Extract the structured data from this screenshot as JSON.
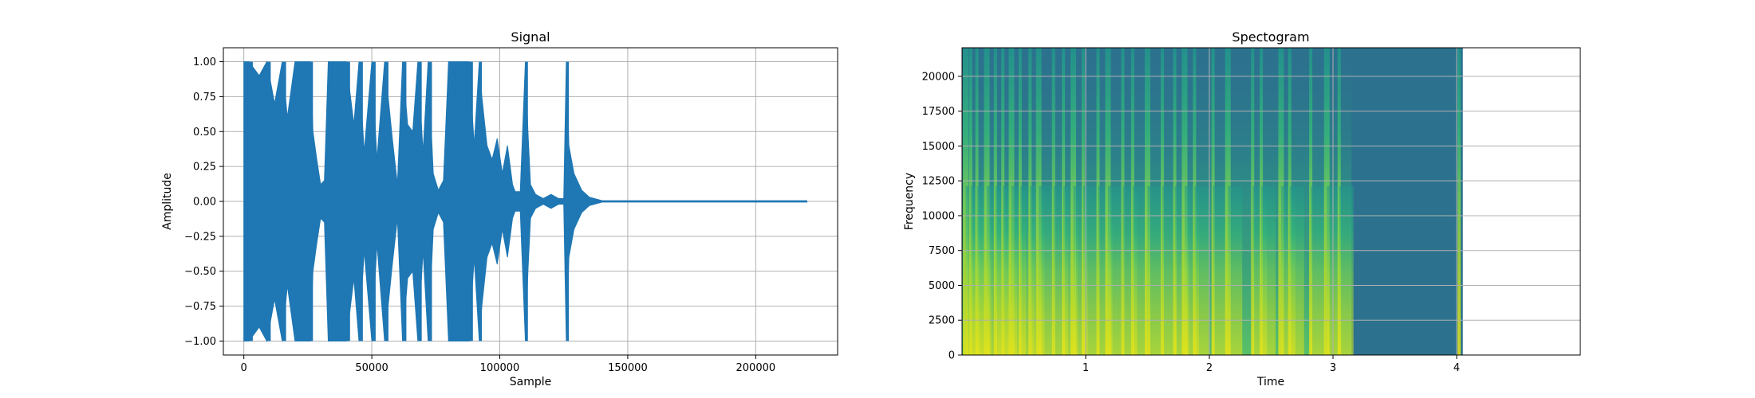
{
  "chart_data": [
    {
      "type": "line",
      "title": "Signal",
      "xlabel": "Sample",
      "ylabel": "Amplitude",
      "xlim": [
        -8000,
        232000
      ],
      "ylim": [
        -1.1,
        1.1
      ],
      "xticks": [
        0,
        50000,
        100000,
        150000,
        200000
      ],
      "yticks": [
        -1.0,
        -0.75,
        -0.5,
        -0.25,
        0.0,
        0.25,
        0.5,
        0.75,
        1.0
      ],
      "xtick_labels": [
        "0",
        "50000",
        "100000",
        "150000",
        "200000"
      ],
      "ytick_labels": [
        "−1.00",
        "−0.75",
        "−0.50",
        "−0.25",
        "0.00",
        "0.25",
        "0.50",
        "0.75",
        "1.00"
      ],
      "grid": true,
      "color": "#1f77b4",
      "envelope": {
        "x": [
          0,
          2000,
          6000,
          9000,
          12000,
          15000,
          17000,
          20000,
          24000,
          26000,
          27000,
          28500,
          30000,
          31500,
          33000,
          36000,
          40000,
          43000,
          45000,
          47000,
          50000,
          52000,
          55000,
          58000,
          60000,
          62000,
          64000,
          66000,
          68000,
          70000,
          72000,
          74000,
          76000,
          78000,
          80000,
          83000,
          86000,
          88000,
          90000,
          92000,
          93000,
          95000,
          97000,
          99000,
          101000,
          103000,
          105000,
          106000,
          108000,
          110000,
          111000,
          112000,
          114000,
          117000,
          120000,
          123000,
          125000,
          126000,
          127000,
          129000,
          132000,
          135000,
          138000,
          140000,
          220000
        ],
        "amplitude": [
          1.0,
          1.0,
          0.9,
          1.0,
          0.7,
          1.0,
          0.6,
          1.0,
          1.0,
          1.0,
          0.5,
          0.3,
          0.12,
          0.15,
          1.0,
          1.0,
          1.0,
          0.55,
          1.0,
          0.35,
          1.0,
          0.3,
          1.0,
          0.45,
          0.12,
          1.0,
          0.55,
          0.5,
          1.0,
          0.35,
          1.0,
          0.2,
          0.08,
          0.15,
          1.0,
          1.0,
          1.0,
          1.0,
          0.4,
          1.0,
          0.75,
          0.4,
          0.3,
          0.45,
          0.2,
          0.4,
          0.12,
          0.07,
          0.07,
          1.0,
          0.5,
          0.12,
          0.05,
          0.02,
          0.05,
          0.02,
          0.02,
          1.0,
          0.4,
          0.2,
          0.08,
          0.03,
          0.015,
          0.005,
          0.005
        ]
      }
    },
    {
      "type": "heatmap",
      "title": "Spectogram",
      "xlabel": "Time",
      "ylabel": "Frequency",
      "xlim": [
        0,
        5.0
      ],
      "ylim": [
        0,
        22050
      ],
      "xticks": [
        1,
        2,
        3,
        4
      ],
      "yticks": [
        0,
        2500,
        5000,
        7500,
        10000,
        12500,
        15000,
        17500,
        20000
      ],
      "xtick_labels": [
        "1",
        "2",
        "3",
        "4"
      ],
      "ytick_labels": [
        "0",
        "2500",
        "5000",
        "7500",
        "10000",
        "12500",
        "15000",
        "17500",
        "20000"
      ],
      "data_extent_time": [
        0,
        4.05
      ],
      "grid": true,
      "colormap": [
        "#31688e",
        "#26828e",
        "#1f9e89",
        "#35b779",
        "#6ece58",
        "#b5de2b",
        "#fde725"
      ],
      "background_color": "#2c728e",
      "onsets": [
        0.03,
        0.07,
        0.12,
        0.2,
        0.27,
        0.33,
        0.4,
        0.47,
        0.55,
        0.62,
        0.74,
        0.82,
        0.9,
        0.98,
        1.1,
        1.18,
        1.3,
        1.38,
        1.5,
        1.62,
        1.72,
        1.8,
        1.88,
        2.03,
        2.15,
        2.35,
        2.42,
        2.58,
        2.65,
        2.82,
        2.95,
        3.05,
        4.02
      ],
      "energy_end": 3.15
    }
  ]
}
